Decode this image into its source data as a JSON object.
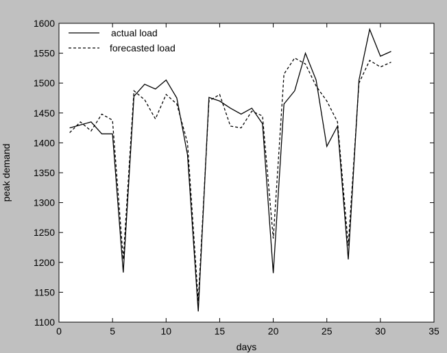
{
  "chart_data": {
    "type": "line",
    "title": "",
    "xlabel": "days",
    "ylabel": "peak demand",
    "xlim": [
      0,
      35
    ],
    "ylim": [
      1100,
      1600
    ],
    "xticks": [
      0,
      5,
      10,
      15,
      20,
      25,
      30,
      35
    ],
    "yticks": [
      1100,
      1150,
      1200,
      1250,
      1300,
      1350,
      1400,
      1450,
      1500,
      1550,
      1600
    ],
    "grid": false,
    "legend_position": "top-left",
    "x": [
      1,
      2,
      3,
      4,
      5,
      6,
      7,
      8,
      9,
      10,
      11,
      12,
      13,
      14,
      15,
      16,
      17,
      18,
      19,
      20,
      21,
      22,
      23,
      24,
      25,
      26,
      27,
      28,
      29,
      30,
      31
    ],
    "series": [
      {
        "name": "actual load",
        "style": "solid",
        "color": "#000000",
        "values": [
          1425,
          1430,
          1435,
          1415,
          1415,
          1183,
          1478,
          1498,
          1490,
          1505,
          1475,
          1380,
          1118,
          1476,
          1470,
          1458,
          1448,
          1458,
          1432,
          1182,
          1465,
          1487,
          1550,
          1505,
          1394,
          1428,
          1205,
          1505,
          1590,
          1545,
          1553
        ]
      },
      {
        "name": "forecasted load",
        "style": "dashed",
        "color": "#000000",
        "values": [
          1417,
          1435,
          1420,
          1448,
          1438,
          1205,
          1487,
          1472,
          1440,
          1481,
          1465,
          1400,
          1135,
          1470,
          1481,
          1428,
          1425,
          1453,
          1445,
          1240,
          1515,
          1542,
          1532,
          1495,
          1470,
          1435,
          1228,
          1500,
          1538,
          1527,
          1535
        ]
      }
    ]
  }
}
